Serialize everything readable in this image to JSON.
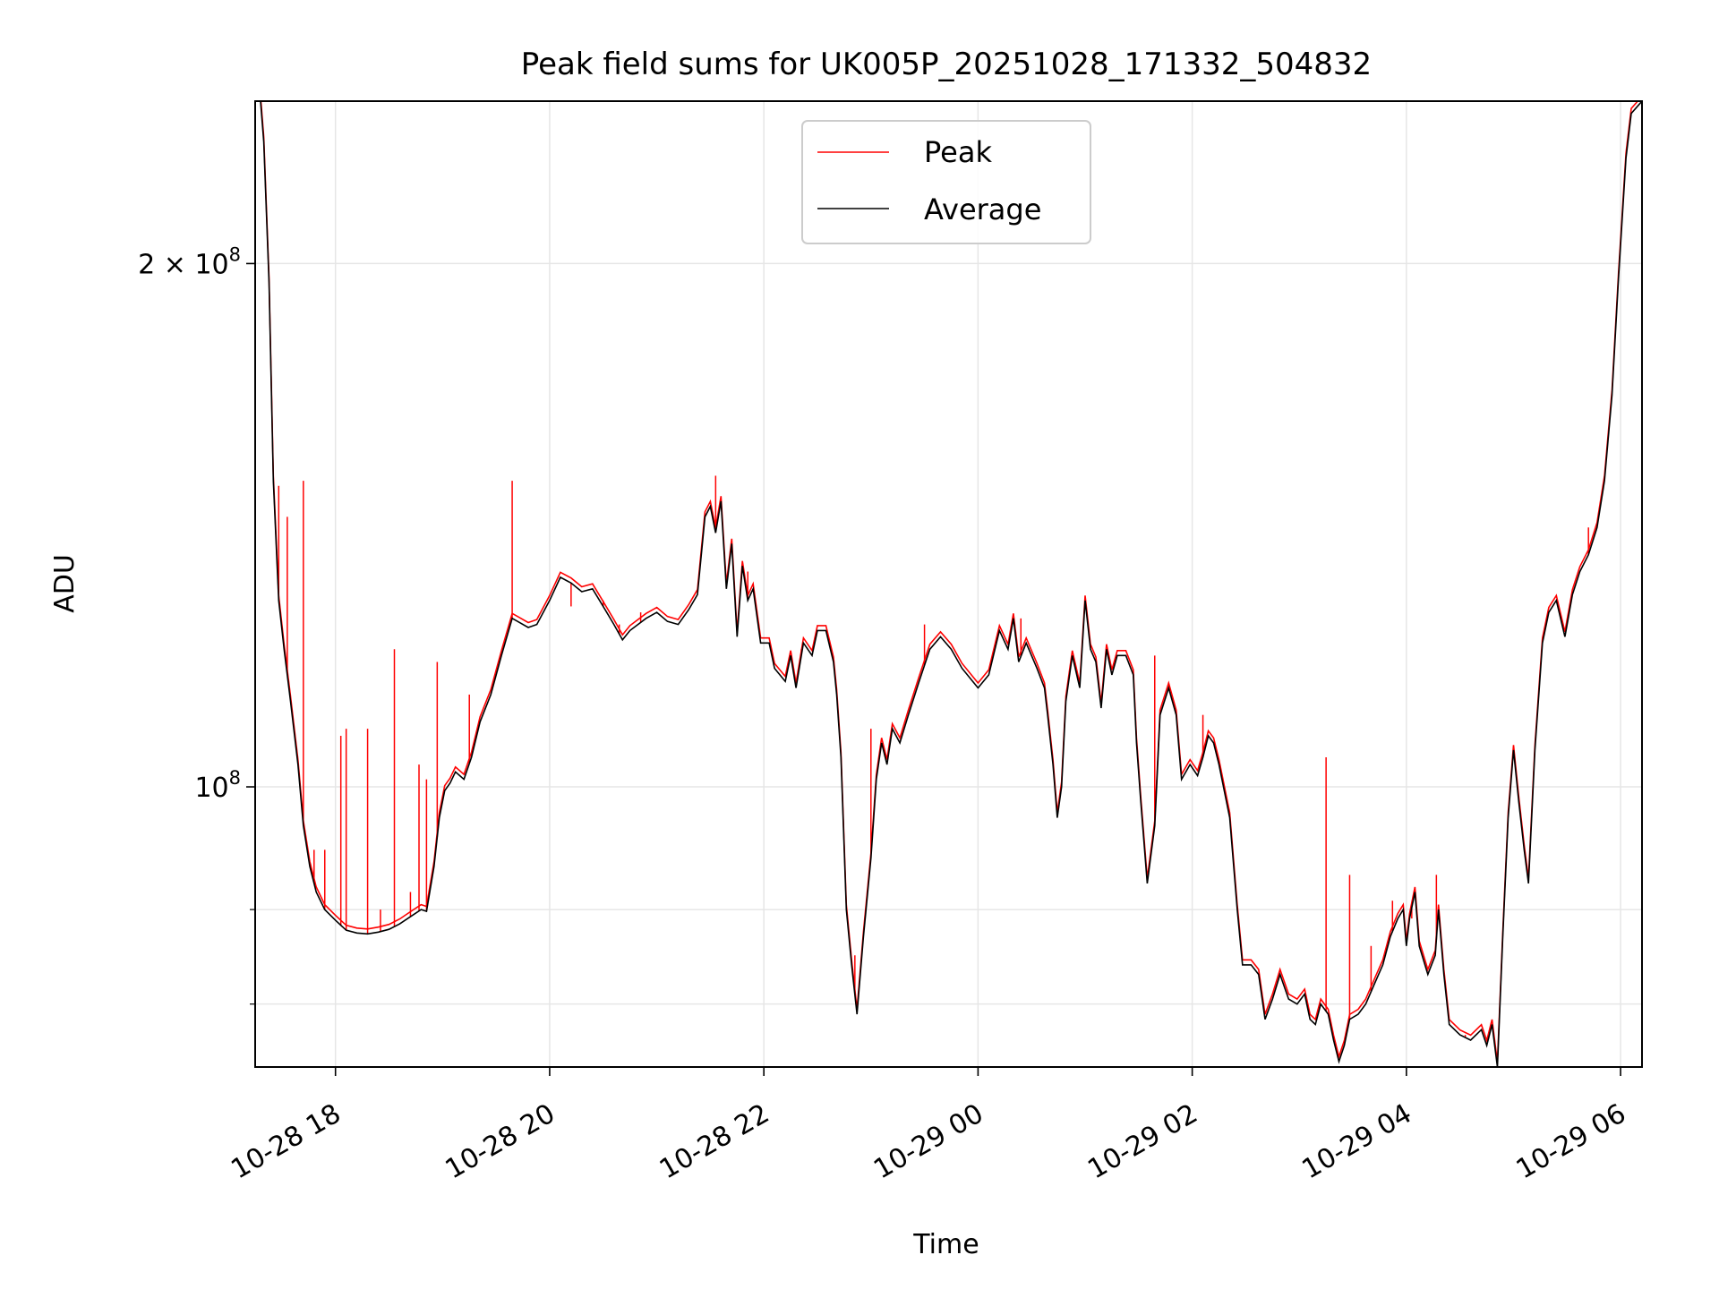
{
  "chart_data": {
    "type": "line",
    "title": "Peak field sums for UK005P_20251028_171332_504832",
    "xlabel": "Time",
    "ylabel": "ADU",
    "yscale": "log",
    "ylim": [
      69000000,
      248000000
    ],
    "xlim_hours": [
      17.25,
      30.2
    ],
    "grid": true,
    "legend": {
      "position": "top-center",
      "entries": [
        "Peak",
        "Average"
      ]
    },
    "x_ticks": [
      {
        "label": "10-28 18",
        "hour": 18
      },
      {
        "label": "10-28 20",
        "hour": 20
      },
      {
        "label": "10-28 22",
        "hour": 22
      },
      {
        "label": "10-29 00",
        "hour": 24
      },
      {
        "label": "10-29 02",
        "hour": 26
      },
      {
        "label": "10-29 04",
        "hour": 28
      },
      {
        "label": "10-29 06",
        "hour": 30
      }
    ],
    "y_major_ticks": [
      {
        "value": 100000000,
        "base": "10",
        "exp": "8",
        "coef": ""
      },
      {
        "value": 200000000,
        "base": "10",
        "exp": "8",
        "coef": "2 × "
      }
    ],
    "y_minor_grid": [
      75000000,
      85000000
    ],
    "series": [
      {
        "name": "Average",
        "color": "#000000",
        "points": [
          [
            17.3,
            248
          ],
          [
            17.33,
            235
          ],
          [
            17.38,
            195
          ],
          [
            17.42,
            150
          ],
          [
            17.47,
            128
          ],
          [
            17.52,
            120
          ],
          [
            17.58,
            112
          ],
          [
            17.65,
            103
          ],
          [
            17.7,
            95
          ],
          [
            17.76,
            90
          ],
          [
            17.82,
            87
          ],
          [
            17.9,
            85
          ],
          [
            18.0,
            83.8
          ],
          [
            18.1,
            82.7
          ],
          [
            18.2,
            82.4
          ],
          [
            18.3,
            82.3
          ],
          [
            18.4,
            82.5
          ],
          [
            18.5,
            82.8
          ],
          [
            18.6,
            83.4
          ],
          [
            18.7,
            84.2
          ],
          [
            18.8,
            85.0
          ],
          [
            18.85,
            84.8
          ],
          [
            18.92,
            90
          ],
          [
            18.97,
            96
          ],
          [
            19.02,
            99.5
          ],
          [
            19.07,
            100.5
          ],
          [
            19.12,
            102
          ],
          [
            19.2,
            101
          ],
          [
            19.27,
            104
          ],
          [
            19.35,
            109
          ],
          [
            19.45,
            113
          ],
          [
            19.55,
            119
          ],
          [
            19.65,
            125
          ],
          [
            19.7,
            124.5
          ],
          [
            19.8,
            123.5
          ],
          [
            19.88,
            124
          ],
          [
            20.0,
            128
          ],
          [
            20.1,
            132
          ],
          [
            20.2,
            131
          ],
          [
            20.3,
            129.5
          ],
          [
            20.4,
            130
          ],
          [
            20.5,
            127
          ],
          [
            20.6,
            124
          ],
          [
            20.68,
            121.5
          ],
          [
            20.75,
            123
          ],
          [
            20.9,
            125
          ],
          [
            21.0,
            126
          ],
          [
            21.1,
            124.5
          ],
          [
            21.2,
            124
          ],
          [
            21.3,
            126.5
          ],
          [
            21.38,
            129
          ],
          [
            21.45,
            143
          ],
          [
            21.5,
            145
          ],
          [
            21.55,
            140
          ],
          [
            21.6,
            146
          ],
          [
            21.65,
            130
          ],
          [
            21.7,
            138
          ],
          [
            21.75,
            122
          ],
          [
            21.8,
            134
          ],
          [
            21.85,
            128
          ],
          [
            21.9,
            130
          ],
          [
            21.97,
            121
          ],
          [
            22.05,
            121
          ],
          [
            22.1,
            117
          ],
          [
            22.2,
            115
          ],
          [
            22.25,
            119
          ],
          [
            22.3,
            114
          ],
          [
            22.37,
            121
          ],
          [
            22.45,
            119
          ],
          [
            22.5,
            123
          ],
          [
            22.58,
            123
          ],
          [
            22.65,
            118
          ],
          [
            22.68,
            113
          ],
          [
            22.72,
            104
          ],
          [
            22.77,
            85
          ],
          [
            22.82,
            79
          ],
          [
            22.87,
            74
          ],
          [
            22.93,
            82
          ],
          [
            23.0,
            91
          ],
          [
            23.05,
            101
          ],
          [
            23.1,
            106
          ],
          [
            23.15,
            103
          ],
          [
            23.2,
            108
          ],
          [
            23.27,
            106
          ],
          [
            23.35,
            110
          ],
          [
            23.45,
            115
          ],
          [
            23.55,
            120
          ],
          [
            23.65,
            122
          ],
          [
            23.75,
            120
          ],
          [
            23.85,
            117
          ],
          [
            24.0,
            114
          ],
          [
            24.1,
            116
          ],
          [
            24.2,
            123
          ],
          [
            24.28,
            120
          ],
          [
            24.33,
            125
          ],
          [
            24.38,
            118
          ],
          [
            24.45,
            121
          ],
          [
            24.55,
            117
          ],
          [
            24.62,
            114
          ],
          [
            24.65,
            110
          ],
          [
            24.7,
            103
          ],
          [
            24.74,
            96
          ],
          [
            24.78,
            100
          ],
          [
            24.82,
            112
          ],
          [
            24.88,
            119
          ],
          [
            24.95,
            114
          ],
          [
            25.0,
            128
          ],
          [
            25.05,
            120
          ],
          [
            25.1,
            118
          ],
          [
            25.15,
            111
          ],
          [
            25.2,
            120
          ],
          [
            25.25,
            116
          ],
          [
            25.3,
            119
          ],
          [
            25.38,
            119
          ],
          [
            25.45,
            116
          ],
          [
            25.48,
            106
          ],
          [
            25.52,
            98
          ],
          [
            25.58,
            88
          ],
          [
            25.65,
            95
          ],
          [
            25.7,
            110
          ],
          [
            25.78,
            114
          ],
          [
            25.85,
            110
          ],
          [
            25.9,
            101
          ],
          [
            25.98,
            103
          ],
          [
            26.05,
            101.5
          ],
          [
            26.1,
            104
          ],
          [
            26.15,
            107
          ],
          [
            26.2,
            106
          ],
          [
            26.25,
            103
          ],
          [
            26.35,
            96
          ],
          [
            26.42,
            85
          ],
          [
            26.47,
            79
          ],
          [
            26.55,
            79
          ],
          [
            26.62,
            78
          ],
          [
            26.68,
            73.5
          ],
          [
            26.75,
            75.5
          ],
          [
            26.82,
            78
          ],
          [
            26.9,
            75.5
          ],
          [
            26.98,
            75
          ],
          [
            27.05,
            76
          ],
          [
            27.1,
            73.5
          ],
          [
            27.15,
            73
          ],
          [
            27.2,
            75
          ],
          [
            27.27,
            74
          ],
          [
            27.32,
            71.5
          ],
          [
            27.37,
            69.5
          ],
          [
            27.42,
            71
          ],
          [
            27.47,
            73.5
          ],
          [
            27.55,
            74
          ],
          [
            27.62,
            75
          ],
          [
            27.7,
            77
          ],
          [
            27.78,
            79
          ],
          [
            27.85,
            82
          ],
          [
            27.92,
            84
          ],
          [
            27.97,
            85
          ],
          [
            28.0,
            81
          ],
          [
            28.03,
            84
          ],
          [
            28.08,
            87
          ],
          [
            28.12,
            81
          ],
          [
            28.2,
            78
          ],
          [
            28.27,
            80
          ],
          [
            28.3,
            85
          ],
          [
            28.35,
            78
          ],
          [
            28.4,
            73
          ],
          [
            28.5,
            72
          ],
          [
            28.6,
            71.5
          ],
          [
            28.7,
            72.5
          ],
          [
            28.75,
            71
          ],
          [
            28.8,
            73
          ],
          [
            28.85,
            69
          ],
          [
            28.9,
            82
          ],
          [
            28.95,
            96
          ],
          [
            29.0,
            105
          ],
          [
            29.05,
            98
          ],
          [
            29.1,
            92
          ],
          [
            29.14,
            88
          ],
          [
            29.2,
            105
          ],
          [
            29.27,
            121
          ],
          [
            29.33,
            126
          ],
          [
            29.4,
            128
          ],
          [
            29.48,
            122
          ],
          [
            29.55,
            129
          ],
          [
            29.62,
            133
          ],
          [
            29.7,
            136
          ],
          [
            29.78,
            141
          ],
          [
            29.85,
            150
          ],
          [
            29.92,
            168
          ],
          [
            29.98,
            196
          ],
          [
            30.05,
            230
          ],
          [
            30.1,
            244
          ],
          [
            30.2,
            248
          ]
        ]
      },
      {
        "name": "Peak",
        "color": "#ff0000",
        "spikes": [
          [
            17.47,
            149
          ],
          [
            17.55,
            143
          ],
          [
            17.7,
            150
          ],
          [
            17.8,
            92
          ],
          [
            17.9,
            92
          ],
          [
            18.05,
            107
          ],
          [
            18.1,
            108
          ],
          [
            18.3,
            108
          ],
          [
            18.42,
            85
          ],
          [
            18.55,
            120
          ],
          [
            18.7,
            87
          ],
          [
            18.78,
            103
          ],
          [
            18.85,
            101
          ],
          [
            18.95,
            118
          ],
          [
            19.25,
            113
          ],
          [
            19.65,
            150
          ],
          [
            20.05,
            130
          ],
          [
            20.2,
            127
          ],
          [
            20.5,
            128
          ],
          [
            20.65,
            124
          ],
          [
            20.85,
            126
          ],
          [
            21.55,
            151
          ],
          [
            21.72,
            132
          ],
          [
            21.85,
            133
          ],
          [
            22.35,
            120
          ],
          [
            22.5,
            123
          ],
          [
            22.85,
            80
          ],
          [
            23.0,
            108
          ],
          [
            23.5,
            124
          ],
          [
            24.4,
            125
          ],
          [
            25.0,
            128
          ],
          [
            25.65,
            119
          ],
          [
            26.1,
            110
          ],
          [
            27.25,
            104
          ],
          [
            27.47,
            89
          ],
          [
            27.67,
            81
          ],
          [
            27.87,
            86
          ],
          [
            28.05,
            84
          ],
          [
            28.28,
            89
          ],
          [
            28.55,
            72
          ],
          [
            29.7,
            141
          ],
          [
            29.85,
            151
          ]
        ]
      }
    ]
  }
}
